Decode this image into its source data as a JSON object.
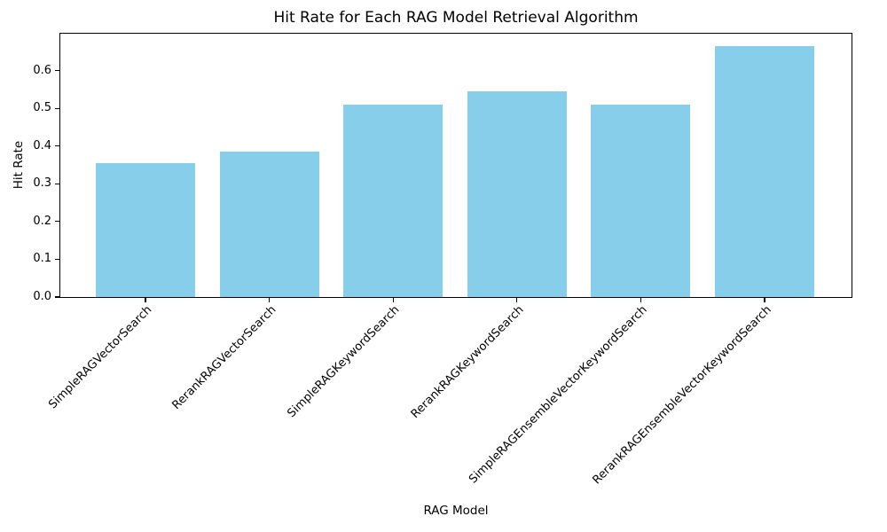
{
  "chart_data": {
    "type": "bar",
    "title": "Hit Rate for Each RAG Model Retrieval Algorithm",
    "xlabel": "RAG Model",
    "ylabel": "Hit Rate",
    "categories": [
      "SimpleRAGVectorSearch",
      "RerankRAGVectorSearch",
      "SimpleRAGKeywordSearch",
      "RerankRAGKeywordSearch",
      "SimpleRAGEnsembleVectorKeywordSearch",
      "RerankRAGEnsembleVectorKeywordSearch"
    ],
    "values": [
      0.355,
      0.386,
      0.509,
      0.546,
      0.509,
      0.665
    ],
    "bar_color": "#87CEEB",
    "ylim": [
      0,
      0.698
    ],
    "yticks": [
      0.0,
      0.1,
      0.2,
      0.3,
      0.4,
      0.5,
      0.6
    ],
    "ytick_labels": [
      "0.0",
      "0.1",
      "0.2",
      "0.3",
      "0.4",
      "0.5",
      "0.6"
    ],
    "xtick_label_rotation": 45,
    "grid": false,
    "legend": "none"
  }
}
